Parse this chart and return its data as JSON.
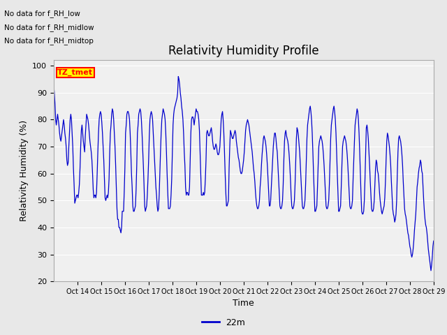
{
  "title": "Relativity Humidity Profile",
  "ylabel": "Relativity Humidity (%)",
  "xlabel": "Time",
  "legend_label": "22m",
  "line_color": "#0000cc",
  "bg_color": "#e8e8e8",
  "plot_bg_color": "#f0f0f0",
  "ylim": [
    20,
    102
  ],
  "yticks": [
    20,
    30,
    40,
    50,
    60,
    70,
    80,
    90,
    100
  ],
  "annotations_left": [
    "No data for f_RH_low",
    "No data for f_RH_midlow",
    "No data for f_RH_midtop"
  ],
  "tz_label": "TZ_tmet",
  "humidity_data": [
    93,
    90,
    86,
    80,
    78,
    80,
    82,
    80,
    78,
    75,
    73,
    72,
    74,
    76,
    78,
    80,
    78,
    75,
    73,
    70,
    65,
    63,
    64,
    70,
    75,
    80,
    82,
    80,
    75,
    70,
    62,
    56,
    49,
    50,
    51,
    52,
    52,
    51,
    53,
    56,
    62,
    70,
    76,
    78,
    75,
    72,
    70,
    68,
    74,
    78,
    82,
    81,
    80,
    78,
    75,
    72,
    70,
    68,
    65,
    60,
    54,
    51,
    52,
    52,
    51,
    53,
    60,
    68,
    75,
    80,
    82,
    83,
    82,
    79,
    75,
    70,
    65,
    58,
    51,
    50,
    51,
    52,
    51,
    53,
    58,
    68,
    75,
    78,
    82,
    84,
    83,
    80,
    75,
    70,
    63,
    55,
    47,
    43,
    43,
    40,
    40,
    39,
    38,
    40,
    46,
    46,
    46,
    53,
    62,
    75,
    78,
    82,
    83,
    83,
    82,
    80,
    75,
    68,
    60,
    55,
    48,
    46,
    46,
    47,
    48,
    54,
    63,
    75,
    78,
    82,
    83,
    84,
    83,
    80,
    75,
    69,
    63,
    56,
    48,
    46,
    47,
    48,
    52,
    58,
    65,
    74,
    80,
    82,
    83,
    82,
    80,
    75,
    70,
    65,
    60,
    55,
    52,
    48,
    46,
    47,
    52,
    60,
    68,
    75,
    80,
    82,
    84,
    83,
    82,
    80,
    75,
    68,
    60,
    53,
    47,
    47,
    47,
    48,
    52,
    58,
    68,
    78,
    82,
    84,
    85,
    86,
    87,
    88,
    90,
    96,
    95,
    93,
    90,
    88,
    85,
    83,
    80,
    75,
    68,
    63,
    55,
    52,
    53,
    53,
    52,
    52,
    55,
    65,
    75,
    80,
    81,
    81,
    80,
    78,
    80,
    82,
    84,
    83,
    83,
    82,
    80,
    76,
    68,
    60,
    52,
    52,
    52,
    53,
    52,
    53,
    58,
    65,
    75,
    76,
    75,
    74,
    74,
    75,
    76,
    77,
    75,
    72,
    70,
    69,
    69,
    70,
    71,
    70,
    68,
    67,
    67,
    68,
    70,
    75,
    80,
    82,
    83,
    80,
    75,
    68,
    60,
    53,
    48,
    48,
    49,
    50,
    62,
    70,
    76,
    75,
    74,
    73,
    73,
    74,
    75,
    76,
    75,
    72,
    70,
    68,
    66,
    65,
    63,
    61,
    60,
    60,
    61,
    63,
    65,
    68,
    72,
    76,
    78,
    79,
    80,
    79,
    78,
    76,
    74,
    72,
    70,
    68,
    65,
    62,
    60,
    57,
    53,
    50,
    48,
    47,
    47,
    48,
    50,
    55,
    58,
    63,
    67,
    70,
    73,
    74,
    73,
    72,
    70,
    67,
    63,
    58,
    53,
    48,
    48,
    50,
    55,
    60,
    65,
    70,
    73,
    75,
    75,
    73,
    70,
    68,
    63,
    58,
    53,
    48,
    47,
    47,
    48,
    50,
    56,
    65,
    72,
    75,
    76,
    74,
    73,
    72,
    70,
    67,
    63,
    58,
    52,
    48,
    47,
    47,
    48,
    50,
    56,
    65,
    73,
    77,
    76,
    74,
    71,
    68,
    63,
    58,
    53,
    48,
    47,
    47,
    48,
    50,
    56,
    65,
    73,
    78,
    80,
    82,
    84,
    85,
    83,
    80,
    75,
    68,
    60,
    53,
    46,
    46,
    47,
    48,
    55,
    63,
    70,
    72,
    73,
    74,
    73,
    72,
    70,
    67,
    63,
    58,
    53,
    48,
    47,
    47,
    48,
    50,
    56,
    65,
    73,
    78,
    80,
    82,
    84,
    85,
    83,
    80,
    75,
    68,
    60,
    53,
    46,
    46,
    47,
    48,
    55,
    63,
    70,
    72,
    73,
    74,
    73,
    72,
    70,
    67,
    63,
    58,
    53,
    48,
    47,
    47,
    48,
    50,
    58,
    65,
    72,
    78,
    80,
    82,
    84,
    83,
    80,
    75,
    68,
    60,
    52,
    46,
    45,
    45,
    46,
    50,
    58,
    68,
    77,
    78,
    76,
    73,
    68,
    63,
    57,
    52,
    47,
    46,
    46,
    47,
    50,
    56,
    62,
    65,
    64,
    61,
    60,
    57,
    53,
    50,
    48,
    46,
    45,
    46,
    47,
    48,
    51,
    57,
    65,
    72,
    75,
    74,
    72,
    70,
    67,
    63,
    57,
    52,
    47,
    45,
    44,
    42,
    43,
    45,
    50,
    60,
    68,
    73,
    74,
    73,
    72,
    70,
    67,
    63,
    57,
    52,
    47,
    45,
    44,
    42,
    40,
    38,
    37,
    35,
    33,
    32,
    30,
    29,
    30,
    32,
    35,
    39,
    42,
    45,
    50,
    55,
    57,
    60,
    62,
    63,
    65,
    64,
    61,
    60,
    55,
    50,
    46,
    43,
    41,
    40,
    38,
    35,
    32,
    30,
    28,
    26,
    24,
    26,
    29,
    33,
    35
  ]
}
